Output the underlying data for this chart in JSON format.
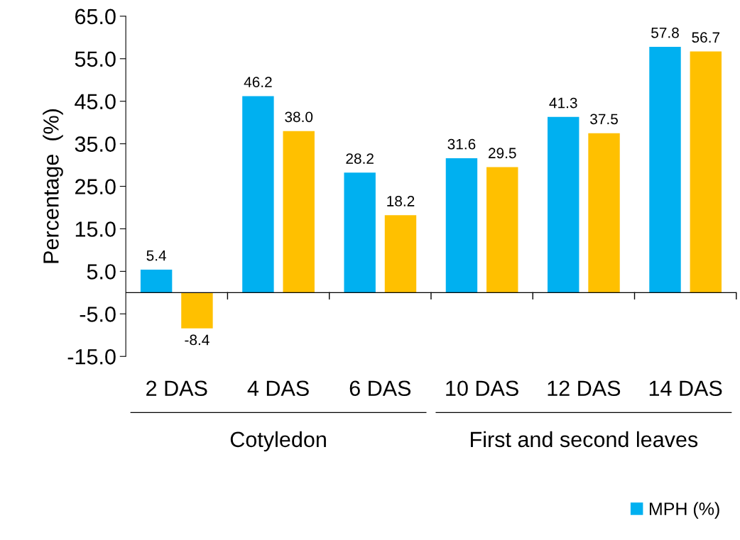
{
  "chart_data": {
    "type": "bar",
    "ylabel": "Percentage  (%)",
    "categories": [
      "2 DAS",
      "4 DAS",
      "6 DAS",
      "10 DAS",
      "12 DAS",
      "14 DAS"
    ],
    "series": [
      {
        "name": "MPH (%)",
        "color": "#00b0f0",
        "values": [
          5.4,
          46.2,
          28.2,
          31.6,
          41.3,
          57.8
        ],
        "value_labels": [
          "5.4",
          "46.2",
          "28.2",
          "31.6",
          "41.3",
          "57.8"
        ]
      },
      {
        "color": "#ffc000",
        "values": [
          -8.4,
          38.0,
          18.2,
          29.5,
          37.5,
          56.7
        ],
        "value_labels": [
          "-8.4",
          "38.0",
          "18.2",
          "29.5",
          "37.5",
          "56.7"
        ]
      }
    ],
    "ylim": [
      -15,
      65
    ],
    "yticks": [
      {
        "value": -15,
        "label": "-15.0"
      },
      {
        "value": -5,
        "label": "-5.0"
      },
      {
        "value": 5,
        "label": "5.0"
      },
      {
        "value": 15,
        "label": "15.0"
      },
      {
        "value": 25,
        "label": "25.0"
      },
      {
        "value": 35,
        "label": "35.0"
      },
      {
        "value": 45,
        "label": "45.0"
      },
      {
        "value": 55,
        "label": "55.0"
      },
      {
        "value": 65,
        "label": "65.0"
      }
    ],
    "grid": false,
    "legend": "bottom right",
    "annotations": [
      "Cotyledon",
      "First and second leaves"
    ]
  }
}
